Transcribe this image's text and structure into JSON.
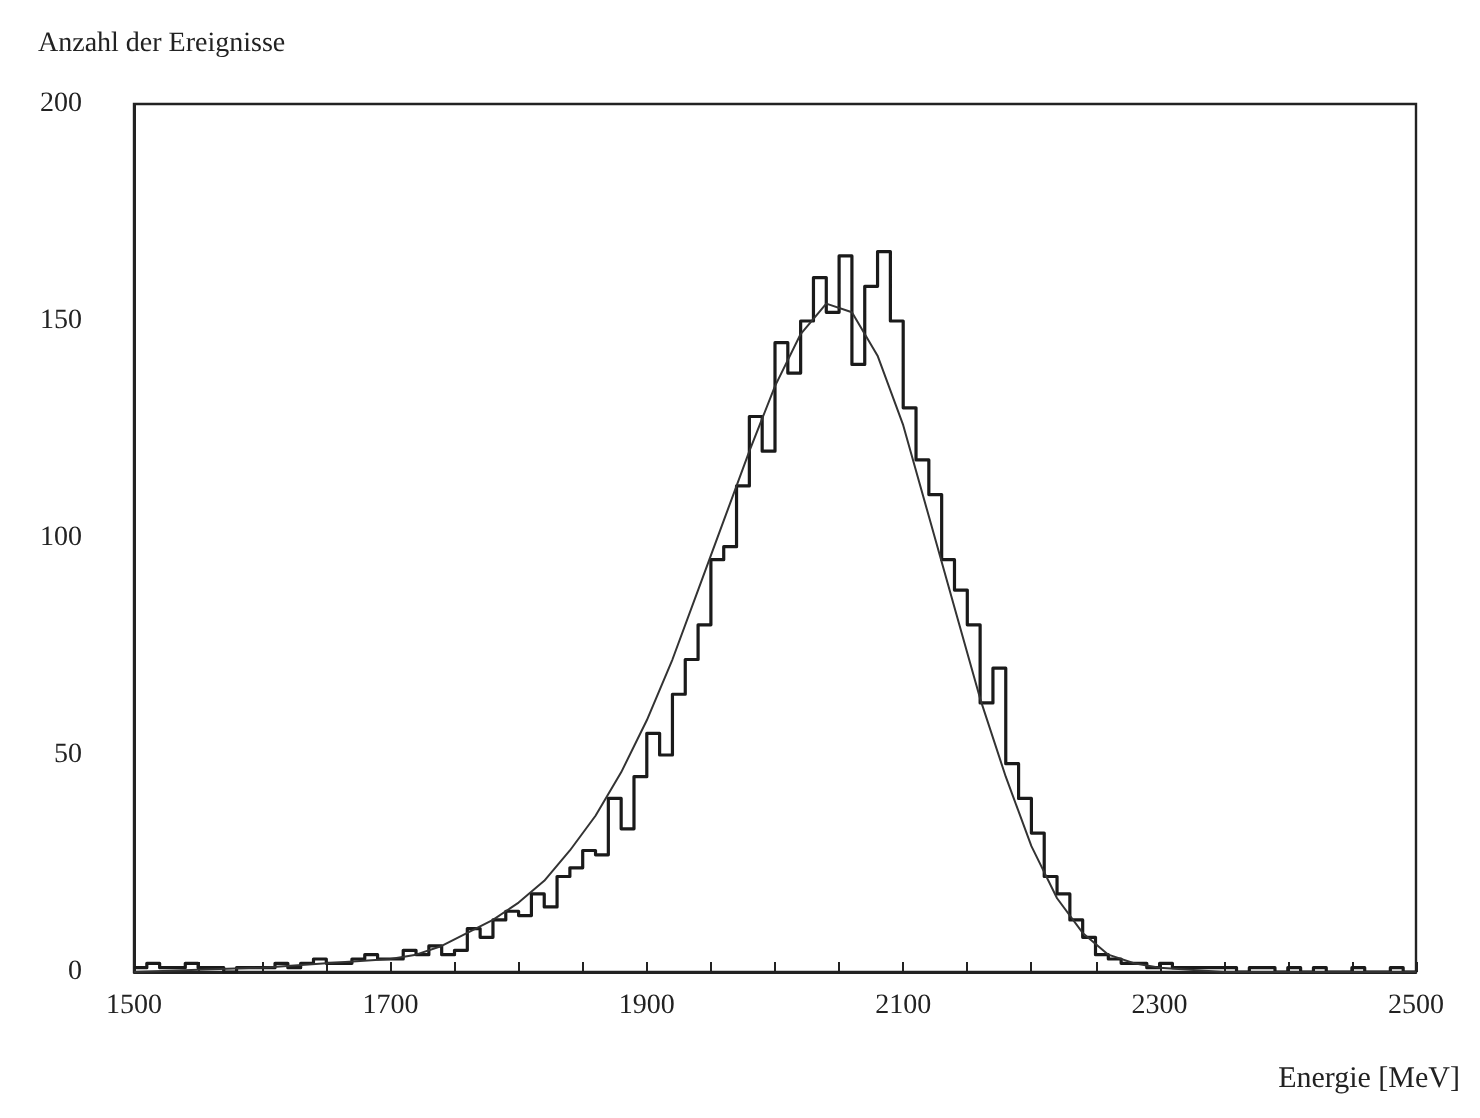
{
  "chart_data": {
    "type": "histogram",
    "xlabel": "Energie [MeV]",
    "ylabel": "Anzahl der Ereignisse",
    "xlim": [
      1500,
      2500
    ],
    "ylim": [
      0,
      200
    ],
    "xticks": [
      1500,
      {
        "value": 1550,
        "label": null
      },
      {
        "value": 1600,
        "label": null
      },
      {
        "value": 1650,
        "label": null
      },
      1700,
      {
        "value": 1750,
        "label": null
      },
      {
        "value": 1800,
        "label": null
      },
      {
        "value": 1850,
        "label": null
      },
      1900,
      {
        "value": 1950,
        "label": null
      },
      {
        "value": 2000,
        "label": null
      },
      {
        "value": 2050,
        "label": null
      },
      2100,
      {
        "value": 2150,
        "label": null
      },
      {
        "value": 2200,
        "label": null
      },
      {
        "value": 2250,
        "label": null
      },
      2300,
      {
        "value": 2350,
        "label": null
      },
      {
        "value": 2400,
        "label": null
      },
      {
        "value": 2450,
        "label": null
      },
      2500
    ],
    "yticks": [
      0,
      50,
      100,
      150,
      200
    ],
    "grid": false,
    "marker": "none",
    "line_style": "solid",
    "series": [
      {
        "type": "histogram",
        "color": "#1a1a1a",
        "bins": [
          1500,
          1510,
          1520,
          1530,
          1540,
          1550,
          1560,
          1570,
          1580,
          1590,
          1600,
          1610,
          1620,
          1630,
          1640,
          1650,
          1660,
          1670,
          1680,
          1690,
          1700,
          1710,
          1720,
          1730,
          1740,
          1750,
          1760,
          1770,
          1780,
          1790,
          1800,
          1810,
          1820,
          1830,
          1840,
          1850,
          1860,
          1870,
          1880,
          1890,
          1900,
          1910,
          1920,
          1930,
          1940,
          1950,
          1960,
          1970,
          1980,
          1990,
          2000,
          2010,
          2020,
          2030,
          2040,
          2050,
          2060,
          2070,
          2080,
          2090,
          2100,
          2110,
          2120,
          2130,
          2140,
          2150,
          2160,
          2170,
          2180,
          2190,
          2200,
          2210,
          2220,
          2230,
          2240,
          2250,
          2260,
          2270,
          2280,
          2290,
          2300,
          2310,
          2320,
          2330,
          2340,
          2350,
          2360,
          2370,
          2380,
          2390,
          2400,
          2410,
          2420,
          2430,
          2440,
          2450,
          2460,
          2470,
          2480,
          2490,
          2500
        ],
        "values": [
          1,
          2,
          1,
          1,
          2,
          1,
          1,
          0,
          1,
          1,
          1,
          2,
          1,
          2,
          3,
          2,
          2,
          3,
          4,
          3,
          3,
          5,
          4,
          6,
          4,
          5,
          10,
          8,
          12,
          14,
          13,
          18,
          15,
          22,
          24,
          28,
          27,
          40,
          33,
          45,
          55,
          50,
          64,
          72,
          80,
          95,
          98,
          112,
          128,
          120,
          145,
          138,
          150,
          160,
          152,
          165,
          140,
          158,
          166,
          150,
          130,
          118,
          110,
          95,
          88,
          80,
          62,
          70,
          48,
          40,
          32,
          22,
          18,
          12,
          8,
          4,
          3,
          2,
          2,
          1,
          2,
          1,
          1,
          1,
          1,
          1,
          0,
          1,
          1,
          0,
          1,
          0,
          1,
          0,
          0,
          1,
          0,
          0,
          1,
          0
        ]
      },
      {
        "type": "line",
        "color": "#333333",
        "x": [
          1500,
          1600,
          1650,
          1700,
          1720,
          1740,
          1760,
          1780,
          1800,
          1820,
          1840,
          1860,
          1880,
          1900,
          1920,
          1940,
          1960,
          1980,
          2000,
          2020,
          2040,
          2060,
          2080,
          2100,
          2120,
          2140,
          2160,
          2180,
          2200,
          2220,
          2240,
          2260,
          2280,
          2300,
          2350,
          2400,
          2500
        ],
        "values": [
          0,
          1,
          2,
          3,
          4,
          6,
          9,
          12,
          16,
          21,
          28,
          36,
          46,
          58,
          72,
          88,
          104,
          120,
          135,
          147,
          154,
          152,
          142,
          126,
          105,
          84,
          63,
          45,
          29,
          17,
          9,
          4,
          2,
          1,
          0,
          0,
          0
        ]
      }
    ]
  }
}
